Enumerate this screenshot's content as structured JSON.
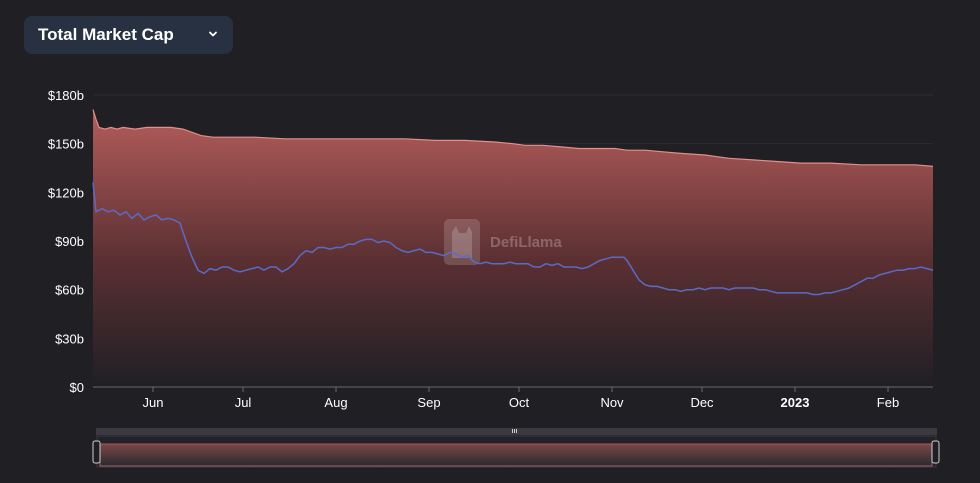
{
  "header": {
    "metric_label": "Total Market Cap",
    "dropdown_icon": "chevron-down-icon"
  },
  "watermark": {
    "text": "DefiLlama",
    "icon": "llama-logo-icon"
  },
  "colors": {
    "background": "#1f1f24",
    "area_top": "#b55d5b",
    "area_bottom": "#1f1f24",
    "area_line": "#e08f8a",
    "line": "#5b6bc4",
    "grid": "#2c2c33",
    "slider_bg": "#2a2a30",
    "slider_handle": "#cfcfcf"
  },
  "chart_data": {
    "type": "area",
    "title": "",
    "x_domain": [
      0,
      280
    ],
    "ylim": [
      0,
      180
    ],
    "y_ticks": [
      "$0",
      "$30b",
      "$60b",
      "$90b",
      "$120b",
      "$150b",
      "$180b"
    ],
    "y_tick_values": [
      0,
      30,
      60,
      90,
      120,
      150,
      180
    ],
    "x_ticks": [
      {
        "label": "Jun",
        "x": 20,
        "bold": false
      },
      {
        "label": "Jul",
        "x": 50,
        "bold": false
      },
      {
        "label": "Aug",
        "x": 81,
        "bold": false
      },
      {
        "label": "Sep",
        "x": 112,
        "bold": false
      },
      {
        "label": "Oct",
        "x": 142,
        "bold": false
      },
      {
        "label": "Nov",
        "x": 173,
        "bold": false
      },
      {
        "label": "Dec",
        "x": 203,
        "bold": false
      },
      {
        "label": "2023",
        "x": 234,
        "bold": true
      },
      {
        "label": "Feb",
        "x": 265,
        "bold": false
      }
    ],
    "series": [
      {
        "type": "area",
        "points": [
          [
            0,
            171
          ],
          [
            1,
            165
          ],
          [
            2,
            160
          ],
          [
            4,
            159
          ],
          [
            6,
            160
          ],
          [
            8,
            159
          ],
          [
            10,
            160
          ],
          [
            14,
            159
          ],
          [
            18,
            160
          ],
          [
            22,
            160
          ],
          [
            26,
            160
          ],
          [
            30,
            159
          ],
          [
            33,
            157
          ],
          [
            36,
            155
          ],
          [
            40,
            154
          ],
          [
            46,
            154
          ],
          [
            54,
            154
          ],
          [
            64,
            153
          ],
          [
            74,
            153
          ],
          [
            84,
            153
          ],
          [
            94,
            153
          ],
          [
            104,
            153
          ],
          [
            114,
            152
          ],
          [
            124,
            152
          ],
          [
            134,
            151
          ],
          [
            140,
            150
          ],
          [
            144,
            149
          ],
          [
            150,
            149
          ],
          [
            156,
            148
          ],
          [
            162,
            147
          ],
          [
            168,
            147
          ],
          [
            174,
            147
          ],
          [
            178,
            146
          ],
          [
            184,
            146
          ],
          [
            190,
            145
          ],
          [
            196,
            144
          ],
          [
            204,
            143
          ],
          [
            212,
            141
          ],
          [
            220,
            140
          ],
          [
            228,
            139
          ],
          [
            236,
            138
          ],
          [
            246,
            138
          ],
          [
            256,
            137
          ],
          [
            266,
            137
          ],
          [
            274,
            137
          ],
          [
            280,
            136
          ]
        ]
      },
      {
        "type": "line",
        "points": [
          [
            0,
            126
          ],
          [
            1,
            108
          ],
          [
            3,
            110
          ],
          [
            5,
            108
          ],
          [
            7,
            109
          ],
          [
            9,
            106
          ],
          [
            11,
            108
          ],
          [
            13,
            104
          ],
          [
            15,
            107
          ],
          [
            17,
            103
          ],
          [
            19,
            105
          ],
          [
            21,
            106
          ],
          [
            23,
            103
          ],
          [
            25,
            104
          ],
          [
            27,
            103
          ],
          [
            29,
            101
          ],
          [
            31,
            90
          ],
          [
            33,
            80
          ],
          [
            35,
            72
          ],
          [
            37,
            70
          ],
          [
            39,
            73
          ],
          [
            41,
            72
          ],
          [
            43,
            74
          ],
          [
            45,
            74
          ],
          [
            47,
            72
          ],
          [
            49,
            71
          ],
          [
            51,
            72
          ],
          [
            53,
            73
          ],
          [
            55,
            74
          ],
          [
            57,
            72
          ],
          [
            59,
            74
          ],
          [
            61,
            74
          ],
          [
            63,
            71
          ],
          [
            65,
            73
          ],
          [
            67,
            76
          ],
          [
            69,
            81
          ],
          [
            71,
            84
          ],
          [
            73,
            83
          ],
          [
            75,
            86
          ],
          [
            77,
            86
          ],
          [
            79,
            85
          ],
          [
            81,
            86
          ],
          [
            83,
            86
          ],
          [
            85,
            88
          ],
          [
            87,
            88
          ],
          [
            89,
            90
          ],
          [
            91,
            91
          ],
          [
            93,
            91
          ],
          [
            95,
            89
          ],
          [
            97,
            90
          ],
          [
            99,
            89
          ],
          [
            101,
            86
          ],
          [
            103,
            84
          ],
          [
            105,
            83
          ],
          [
            107,
            84
          ],
          [
            109,
            85
          ],
          [
            111,
            83
          ],
          [
            113,
            83
          ],
          [
            115,
            82
          ],
          [
            117,
            81
          ],
          [
            119,
            83
          ],
          [
            121,
            82
          ],
          [
            123,
            80
          ],
          [
            125,
            81
          ],
          [
            127,
            77
          ],
          [
            129,
            76
          ],
          [
            131,
            77
          ],
          [
            133,
            76
          ],
          [
            135,
            76
          ],
          [
            137,
            76
          ],
          [
            139,
            77
          ],
          [
            141,
            76
          ],
          [
            143,
            76
          ],
          [
            145,
            76
          ],
          [
            147,
            74
          ],
          [
            149,
            74
          ],
          [
            151,
            76
          ],
          [
            153,
            75
          ],
          [
            155,
            76
          ],
          [
            157,
            74
          ],
          [
            159,
            74
          ],
          [
            161,
            74
          ],
          [
            163,
            73
          ],
          [
            165,
            74
          ],
          [
            167,
            76
          ],
          [
            169,
            78
          ],
          [
            171,
            79
          ],
          [
            173,
            80
          ],
          [
            175,
            80
          ],
          [
            177,
            80
          ],
          [
            178,
            78
          ],
          [
            180,
            72
          ],
          [
            182,
            66
          ],
          [
            184,
            63
          ],
          [
            186,
            62
          ],
          [
            188,
            62
          ],
          [
            190,
            61
          ],
          [
            192,
            60
          ],
          [
            194,
            60
          ],
          [
            196,
            59
          ],
          [
            198,
            60
          ],
          [
            200,
            60
          ],
          [
            202,
            61
          ],
          [
            204,
            60
          ],
          [
            206,
            61
          ],
          [
            208,
            61
          ],
          [
            210,
            61
          ],
          [
            212,
            60
          ],
          [
            214,
            61
          ],
          [
            216,
            61
          ],
          [
            218,
            61
          ],
          [
            220,
            61
          ],
          [
            222,
            60
          ],
          [
            224,
            60
          ],
          [
            226,
            59
          ],
          [
            228,
            58
          ],
          [
            230,
            58
          ],
          [
            232,
            58
          ],
          [
            234,
            58
          ],
          [
            236,
            58
          ],
          [
            238,
            58
          ],
          [
            240,
            57
          ],
          [
            242,
            57
          ],
          [
            244,
            58
          ],
          [
            246,
            58
          ],
          [
            248,
            59
          ],
          [
            250,
            60
          ],
          [
            252,
            61
          ],
          [
            254,
            63
          ],
          [
            256,
            65
          ],
          [
            258,
            67
          ],
          [
            260,
            67
          ],
          [
            262,
            69
          ],
          [
            264,
            70
          ],
          [
            266,
            71
          ],
          [
            268,
            72
          ],
          [
            270,
            72
          ],
          [
            272,
            73
          ],
          [
            274,
            73
          ],
          [
            276,
            74
          ],
          [
            278,
            73
          ],
          [
            280,
            72
          ]
        ]
      }
    ]
  }
}
